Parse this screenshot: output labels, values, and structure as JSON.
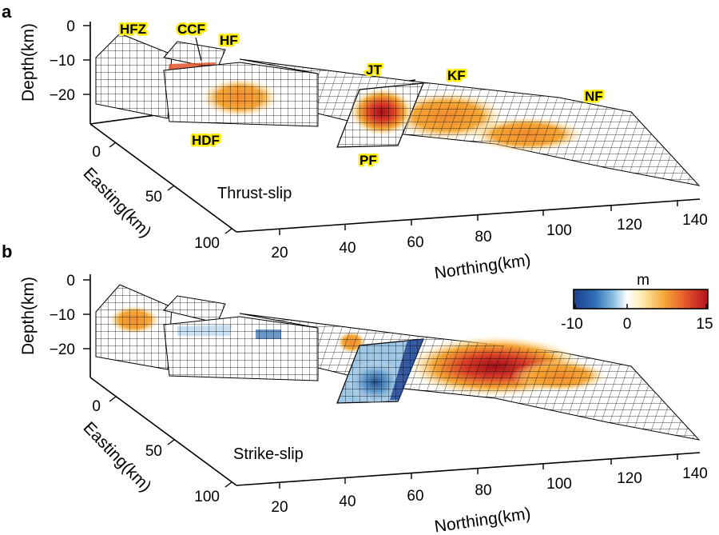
{
  "panels": [
    {
      "letter": "a",
      "mode": "Thrust-slip",
      "fault_labels": {
        "hfz": "HFZ",
        "ccf": "CCF",
        "hf": "HF",
        "hdf": "HDF",
        "jt": "JT",
        "kf": "KF",
        "nf": "NF",
        "pf": "PF"
      },
      "depth_ticks": [
        "0",
        "−10",
        "−20"
      ],
      "depth_label": "Depth(km)",
      "easting_ticks": [
        "0",
        "50",
        "100"
      ],
      "easting_label": "Easting(km)",
      "northing_ticks": [
        "20",
        "40",
        "60",
        "80",
        "100",
        "120",
        "140"
      ],
      "northing_label": "Northing(km)"
    },
    {
      "letter": "b",
      "mode": "Strike-slip",
      "depth_ticks": [
        "0",
        "−10",
        "−20"
      ],
      "depth_label": "Depth(km)",
      "easting_ticks": [
        "0",
        "50",
        "100"
      ],
      "easting_label": "Easting(km)",
      "northing_ticks": [
        "20",
        "40",
        "60",
        "80",
        "100",
        "120",
        "140"
      ],
      "northing_label": "Northing(km)"
    }
  ],
  "colorbar": {
    "unit": "m",
    "tick_labels": [
      "-10",
      "0",
      "15"
    ],
    "min": -10,
    "max": 15,
    "stops": [
      "#1b3f8f",
      "#2f6fb5",
      "#8ec1e3",
      "#ffffff",
      "#fde7a8",
      "#f4a636",
      "#e4542a",
      "#b3131f"
    ]
  }
}
